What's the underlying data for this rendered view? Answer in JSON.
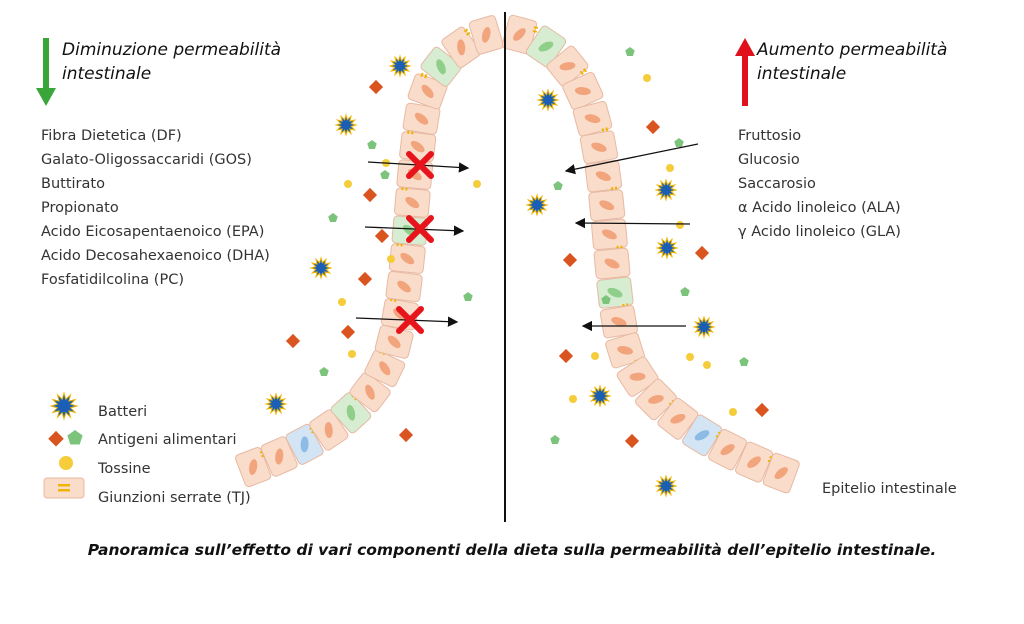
{
  "left_panel": {
    "heading_line1": "Diminuzione permeabilità",
    "heading_line2": "intestinale",
    "arrow_color": "#3aa63a",
    "items": [
      "Fibra Dietetica (DF)",
      "Galato-Oligossaccaridi (GOS)",
      "Buttirato",
      "Propionato",
      "Acido Eicosapentaenoico (EPA)",
      "Acido Decosahexaenoico (DHA)",
      "Fosfatidilcolina (PC)"
    ]
  },
  "right_panel": {
    "heading_line1": "Aumento permeabilità",
    "heading_line2": "intestinale",
    "arrow_color": "#e0101c",
    "items": [
      "Fruttosio",
      "Glucosio",
      "Saccarosio",
      "α Acido linoleico (ALA)",
      "γ Acido linoleico  (GLA)"
    ]
  },
  "legend": [
    {
      "icon": "bacteria-icon",
      "label": "Batteri"
    },
    {
      "icon": "food-antigen-icon",
      "label": "Antigeni alimentari"
    },
    {
      "icon": "toxin-icon",
      "label": "Tossine"
    },
    {
      "icon": "tight-junction-icon",
      "label": "Giunzioni serrate (TJ)"
    }
  ],
  "epithelium_label": "Epitelio intestinale",
  "caption": "Panoramica sull’effetto di vari componenti della dieta sulla permeabilità dell’epitelio intestinale.",
  "colors": {
    "cell": "#fadccb",
    "cell_green": "#d6edd2",
    "cell_blue": "#d3e5f4",
    "nucleus": "#f2a47c",
    "bacteria": "#1a5fb4",
    "antigen_red": "#d9541e",
    "antigen_green": "#7cc47c",
    "toxin": "#f5cc3a",
    "block_x": "#e8141c"
  }
}
